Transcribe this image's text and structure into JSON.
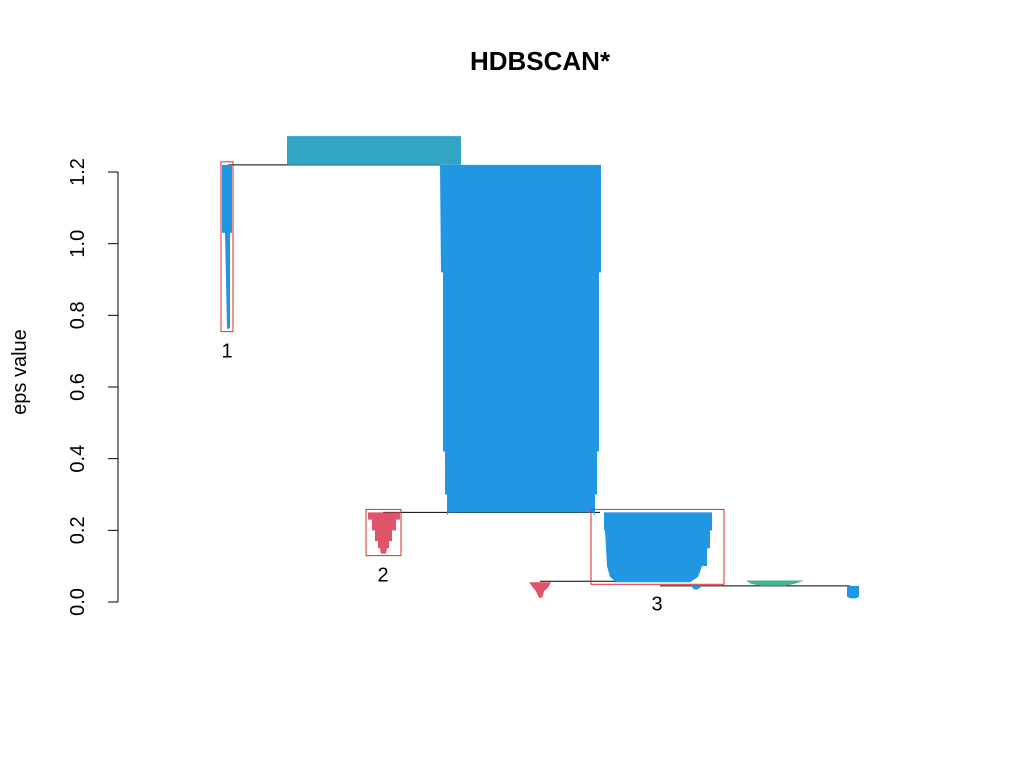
{
  "chart_data": {
    "type": "cluster-tree",
    "title": "HDBSCAN*",
    "xlabel": "",
    "ylabel": "eps value",
    "ylim": [
      0,
      1.2
    ],
    "yticks": [
      "0.0",
      "0.2",
      "0.4",
      "0.6",
      "0.8",
      "1.0",
      "1.2"
    ],
    "ytick_values": [
      0,
      0.2,
      0.4,
      0.6,
      0.8,
      1.0,
      1.2
    ],
    "colors": {
      "blue": "#2196e3",
      "teal": "#31a6c2",
      "red": "#df536b",
      "green": "#3fb594",
      "box": "#df2b2b",
      "line": "#000000"
    },
    "selected_clusters": [
      {
        "label": "1",
        "eps_top": 1.22,
        "eps_bottom": 0.76
      },
      {
        "label": "2",
        "eps_top": 0.25,
        "eps_bottom": 0.135
      },
      {
        "label": "3",
        "eps_top": 0.25,
        "eps_bottom": 0.055
      }
    ],
    "branches": [
      {
        "color": "teal",
        "eps_top": 1.3,
        "eps_bottom": 1.22,
        "selected": false
      },
      {
        "color": "blue",
        "eps_top": 1.22,
        "eps_bottom": 0.76,
        "selected": true,
        "label": "1"
      },
      {
        "color": "blue",
        "eps_top": 1.22,
        "eps_bottom": 0.25,
        "selected": false
      },
      {
        "color": "red",
        "eps_top": 0.25,
        "eps_bottom": 0.135,
        "selected": true,
        "label": "2"
      },
      {
        "color": "blue",
        "eps_top": 0.25,
        "eps_bottom": 0.055,
        "selected": true,
        "label": "3"
      },
      {
        "color": "red",
        "eps_top": 0.055,
        "eps_bottom": 0.012,
        "selected": false
      },
      {
        "color": "blue",
        "eps_top": 0.045,
        "eps_bottom": 0.035,
        "selected": false
      },
      {
        "color": "green",
        "eps_top": 0.06,
        "eps_bottom": 0.045,
        "selected": false
      },
      {
        "color": "blue",
        "eps_top": 0.045,
        "eps_bottom": 0.01,
        "selected": false
      }
    ],
    "merges": [
      1.22,
      0.25,
      0.058,
      0.045
    ]
  }
}
